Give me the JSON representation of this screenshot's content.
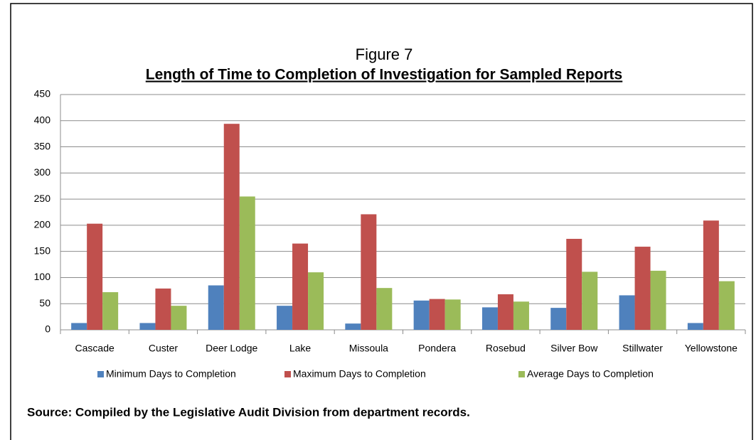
{
  "chart_data": {
    "type": "bar",
    "title": "Figure 7",
    "subtitle": "Length of Time to Completion of Investigation for Sampled Reports",
    "categories": [
      "Cascade",
      "Custer",
      "Deer Lodge",
      "Lake",
      "Missoula",
      "Pondera",
      "Rosebud",
      "Silver Bow",
      "Stillwater",
      "Yellowstone"
    ],
    "series": [
      {
        "name": "Minimum Days to Completion",
        "color": "#4f81bd",
        "values": [
          13,
          13,
          85,
          46,
          12,
          56,
          43,
          42,
          66,
          13
        ]
      },
      {
        "name": "Maximum Days to Completion",
        "color": "#c0504d",
        "values": [
          203,
          79,
          394,
          165,
          221,
          59,
          68,
          174,
          159,
          209
        ]
      },
      {
        "name": "Average Days to Completion",
        "color": "#9bbb59",
        "values": [
          72,
          46,
          255,
          110,
          80,
          58,
          54,
          111,
          113,
          93
        ]
      }
    ],
    "ylim": [
      0,
      450
    ],
    "yticks": [
      0,
      50,
      100,
      150,
      200,
      250,
      300,
      350,
      400,
      450
    ],
    "grid": true,
    "legend": "bottom",
    "source": "Source:  Compiled by the Legislative Audit Division from department records."
  }
}
